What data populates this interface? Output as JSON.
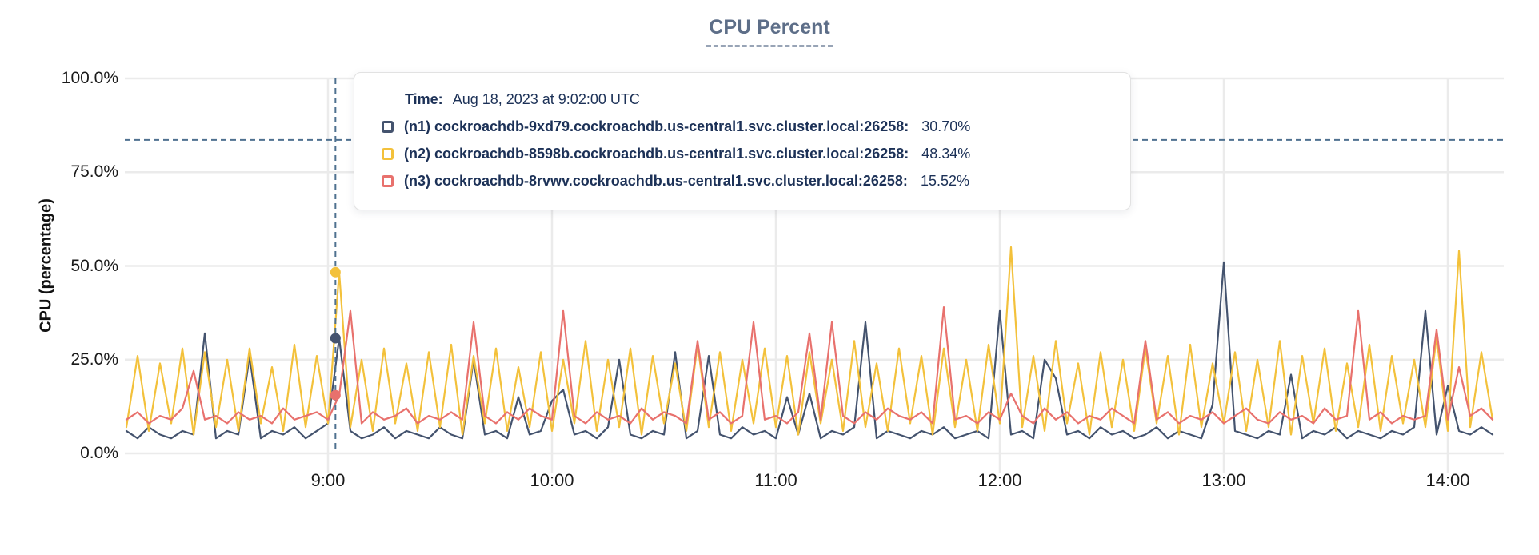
{
  "title": "CPU Percent",
  "y_axis": {
    "label": "CPU (percentage)",
    "ticks": [
      {
        "label": "0.0%",
        "value": 0
      },
      {
        "label": "25.0%",
        "value": 25
      },
      {
        "label": "50.0%",
        "value": 50
      },
      {
        "label": "75.0%",
        "value": 75
      },
      {
        "label": "100.0%",
        "value": 100
      }
    ]
  },
  "x_axis": {
    "ticks": [
      {
        "label": "9:00",
        "minutes": 540
      },
      {
        "label": "10:00",
        "minutes": 600
      },
      {
        "label": "11:00",
        "minutes": 660
      },
      {
        "label": "12:00",
        "minutes": 720
      },
      {
        "label": "13:00",
        "minutes": 780
      },
      {
        "label": "14:00",
        "minutes": 840
      }
    ]
  },
  "crosshair": {
    "time_minutes": 542,
    "y_percent": 83.6
  },
  "tooltip": {
    "time_label": "Time:",
    "time_value": "Aug 18, 2023 at 9:02:00 UTC",
    "rows": [
      {
        "series": "n1",
        "label": "(n1) cockroachdb-9xd79.cockroachdb.us-central1.svc.cluster.local:26258:",
        "value": "30.70%"
      },
      {
        "series": "n2",
        "label": "(n2) cockroachdb-8598b.cockroachdb.us-central1.svc.cluster.local:26258:",
        "value": "48.34%"
      },
      {
        "series": "n3",
        "label": "(n3) cockroachdb-8rvwv.cockroachdb.us-central1.svc.cluster.local:26258:",
        "value": "15.52%"
      }
    ]
  },
  "colors": {
    "n1": "#44536e",
    "n2": "#f3c13b",
    "n3": "#e8716d",
    "text_navy": "#1c3157",
    "title": "#5d6e88",
    "crosshair": "#4f7190",
    "gridline": "#ebebeb",
    "axis_text": "#1a1a1a"
  },
  "chart_data": {
    "type": "line",
    "title": "CPU Percent",
    "ylabel": "CPU (percentage)",
    "ylim": [
      0,
      100
    ],
    "y_tick_percents": [
      0,
      25,
      50,
      75,
      100
    ],
    "x_tick_labels": [
      "9:00",
      "10:00",
      "11:00",
      "12:00",
      "13:00",
      "14:00"
    ],
    "x_start_minutes": 486,
    "x_step_minutes": 3,
    "grid": true,
    "legend_position": "tooltip-overlay",
    "highlight_point": {
      "time": "Aug 18, 2023 at 9:02:00 UTC",
      "values": {
        "n1": 30.7,
        "n2": 48.34,
        "n3": 15.52
      }
    },
    "series": [
      {
        "name": "n1",
        "host": "cockroachdb-9xd79.cockroachdb.us-central1.svc.cluster.local:26258",
        "color": "#44536e",
        "values": [
          6,
          4,
          7,
          5,
          4,
          6,
          5,
          32,
          4,
          6,
          5,
          26,
          4,
          6,
          5,
          7,
          4,
          6,
          8,
          30.7,
          6,
          4,
          5,
          7,
          4,
          6,
          5,
          4,
          7,
          5,
          4,
          25,
          5,
          6,
          4,
          15,
          5,
          6,
          14,
          17,
          5,
          6,
          4,
          7,
          25,
          5,
          4,
          6,
          5,
          27,
          4,
          6,
          26,
          5,
          4,
          7,
          5,
          6,
          4,
          15,
          5,
          16,
          4,
          6,
          5,
          7,
          35,
          4,
          6,
          5,
          4,
          6,
          5,
          7,
          4,
          5,
          6,
          4,
          38,
          5,
          6,
          4,
          25,
          20,
          5,
          6,
          4,
          7,
          5,
          6,
          4,
          5,
          7,
          4,
          6,
          5,
          4,
          13,
          51,
          6,
          5,
          4,
          6,
          5,
          21,
          4,
          6,
          5,
          7,
          4,
          6,
          5,
          4,
          6,
          5,
          7,
          38,
          5,
          18,
          6,
          5,
          7,
          5
        ]
      },
      {
        "name": "n2",
        "host": "cockroachdb-8598b.cockroachdb.us-central1.svc.cluster.local:26258",
        "color": "#f3c13b",
        "values": [
          7,
          26,
          6,
          24,
          8,
          28,
          5,
          27,
          7,
          25,
          6,
          28,
          8,
          23,
          6,
          29,
          7,
          26,
          8,
          48.34,
          7,
          25,
          6,
          28,
          8,
          24,
          6,
          27,
          7,
          29,
          5,
          26,
          8,
          28,
          6,
          23,
          7,
          27,
          6,
          25,
          8,
          30,
          6,
          25,
          7,
          28,
          5,
          26,
          8,
          24,
          6,
          29,
          7,
          27,
          6,
          25,
          8,
          28,
          7,
          26,
          5,
          27,
          8,
          25,
          6,
          30,
          7,
          24,
          6,
          28,
          8,
          26,
          5,
          28,
          7,
          25,
          6,
          29,
          8,
          55,
          7,
          26,
          6,
          30,
          8,
          24,
          5,
          27,
          7,
          25,
          6,
          28,
          8,
          26,
          5,
          29,
          7,
          24,
          8,
          27,
          6,
          25,
          7,
          30,
          5,
          26,
          8,
          28,
          6,
          24,
          7,
          29,
          6,
          26,
          8,
          25,
          7,
          31,
          6,
          54,
          7,
          27,
          9
        ]
      },
      {
        "name": "n3",
        "host": "cockroachdb-8rvwv.cockroachdb.us-central1.svc.cluster.local:26258",
        "color": "#e8716d",
        "values": [
          9,
          11,
          8,
          10,
          9,
          12,
          22,
          9,
          10,
          8,
          11,
          9,
          10,
          8,
          12,
          9,
          10,
          11,
          9,
          15.52,
          38,
          8,
          11,
          9,
          10,
          12,
          8,
          10,
          9,
          11,
          9,
          35,
          10,
          8,
          11,
          9,
          12,
          10,
          9,
          38,
          10,
          8,
          11,
          9,
          10,
          8,
          12,
          9,
          11,
          10,
          8,
          30,
          9,
          11,
          8,
          10,
          35,
          9,
          10,
          8,
          11,
          32,
          9,
          35,
          10,
          8,
          11,
          9,
          12,
          10,
          9,
          11,
          8,
          39,
          9,
          10,
          8,
          11,
          9,
          16,
          10,
          8,
          12,
          9,
          11,
          8,
          10,
          9,
          12,
          10,
          8,
          30,
          9,
          11,
          8,
          10,
          9,
          11,
          8,
          10,
          12,
          9,
          8,
          11,
          9,
          10,
          8,
          12,
          9,
          10,
          38,
          9,
          11,
          8,
          10,
          9,
          10,
          33,
          9,
          23,
          10,
          12,
          9
        ]
      }
    ]
  }
}
